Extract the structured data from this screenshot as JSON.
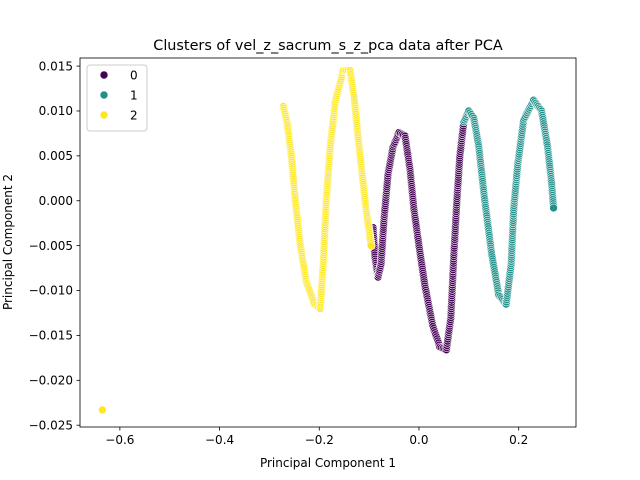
{
  "chart_data": {
    "type": "scatter",
    "title": "Clusters of vel_z_sacrum_s_z_pca data after PCA",
    "xlabel": "Principal Component 1",
    "ylabel": "Principal Component 2",
    "xlim": [
      -0.68,
      0.315
    ],
    "ylim": [
      -0.0252,
      0.0159
    ],
    "xticks": [
      -0.6,
      -0.4,
      -0.2,
      0.0,
      0.2
    ],
    "xtick_labels": [
      "−0.6",
      "−0.4",
      "−0.2",
      "0.0",
      "0.2"
    ],
    "yticks": [
      -0.025,
      -0.02,
      -0.015,
      -0.01,
      -0.005,
      0.0,
      0.005,
      0.01,
      0.015
    ],
    "ytick_labels": [
      "−0.025",
      "−0.020",
      "−0.015",
      "−0.010",
      "−0.005",
      "0.000",
      "0.005",
      "0.010",
      "0.015"
    ],
    "grid": false,
    "legend_position": "top-left",
    "marker_edge_color": "#ffffff",
    "series": [
      {
        "name": "0",
        "color": "#440154",
        "curve": [
          [
            -0.092,
            -0.003
          ],
          [
            -0.088,
            -0.0065
          ],
          [
            -0.082,
            -0.0085
          ],
          [
            -0.076,
            -0.007
          ],
          [
            -0.07,
            -0.002
          ],
          [
            -0.062,
            0.003
          ],
          [
            -0.052,
            0.006
          ],
          [
            -0.04,
            0.0076
          ],
          [
            -0.028,
            0.0072
          ],
          [
            -0.018,
            0.0035
          ],
          [
            -0.01,
            -0.001
          ],
          [
            0.0,
            -0.005
          ],
          [
            0.012,
            -0.0095
          ],
          [
            0.028,
            -0.014
          ],
          [
            0.042,
            -0.0163
          ],
          [
            0.055,
            -0.0166
          ],
          [
            0.064,
            -0.013
          ],
          [
            0.07,
            -0.006
          ],
          [
            0.076,
            0.0
          ],
          [
            0.082,
            0.005
          ],
          [
            0.09,
            0.0088
          ]
        ]
      },
      {
        "name": "1",
        "color": "#21918c",
        "curve": [
          [
            0.09,
            0.0088
          ],
          [
            0.1,
            0.01
          ],
          [
            0.11,
            0.0092
          ],
          [
            0.12,
            0.006
          ],
          [
            0.132,
            0.0
          ],
          [
            0.146,
            -0.006
          ],
          [
            0.16,
            -0.0105
          ],
          [
            0.175,
            -0.0115
          ],
          [
            0.185,
            -0.007
          ],
          [
            0.19,
            -0.001
          ],
          [
            0.198,
            0.004
          ],
          [
            0.21,
            0.009
          ],
          [
            0.23,
            0.0112
          ],
          [
            0.246,
            0.01
          ],
          [
            0.258,
            0.006
          ],
          [
            0.266,
            0.002
          ],
          [
            0.27,
            -0.0008
          ]
        ]
      },
      {
        "name": "2",
        "color": "#fde725",
        "curve": [
          [
            -0.272,
            0.0105
          ],
          [
            -0.264,
            0.0085
          ],
          [
            -0.256,
            0.005
          ],
          [
            -0.248,
            0.0
          ],
          [
            -0.238,
            -0.005
          ],
          [
            -0.226,
            -0.009
          ],
          [
            -0.21,
            -0.0115
          ],
          [
            -0.198,
            -0.012
          ],
          [
            -0.192,
            -0.007
          ],
          [
            -0.186,
            0.0
          ],
          [
            -0.178,
            0.006
          ],
          [
            -0.168,
            0.011
          ],
          [
            -0.152,
            0.0145
          ],
          [
            -0.138,
            0.0145
          ],
          [
            -0.13,
            0.0115
          ],
          [
            -0.122,
            0.007
          ],
          [
            -0.114,
            0.003
          ],
          [
            -0.106,
            -0.001
          ],
          [
            -0.096,
            -0.005
          ]
        ],
        "outliers": [
          [
            -0.635,
            -0.0233
          ]
        ]
      }
    ]
  }
}
